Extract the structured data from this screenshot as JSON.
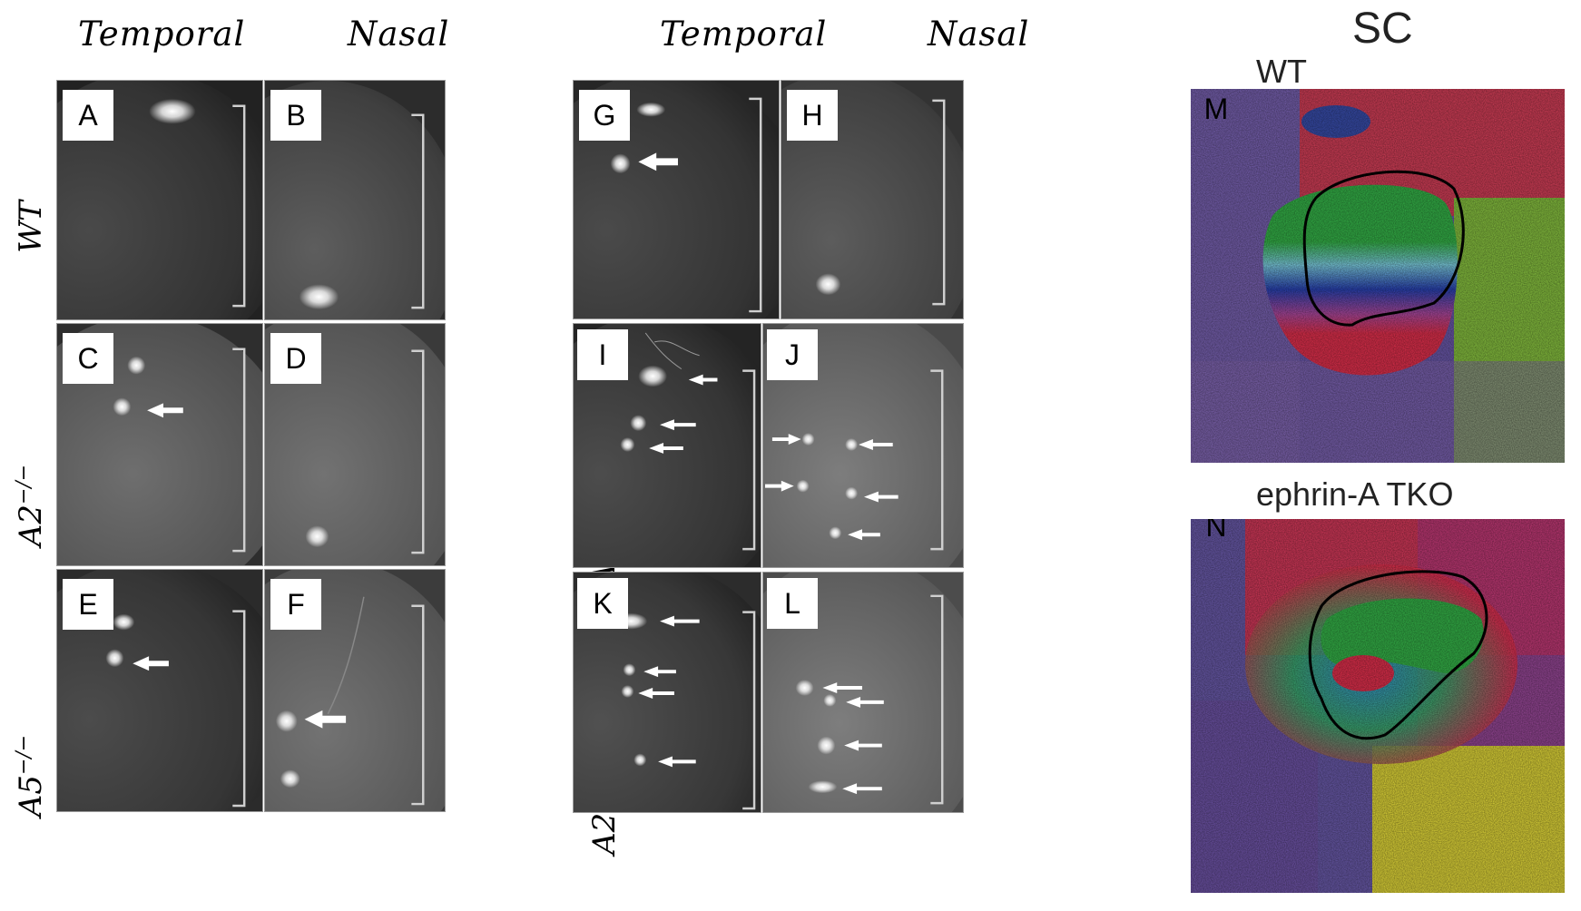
{
  "headers": {
    "left_temporal": "Temporal",
    "left_nasal": "Nasal",
    "mid_temporal": "Temporal",
    "mid_nasal": "Nasal"
  },
  "row_labels": {
    "wt": "WT",
    "a2_base": "A2",
    "a2_sup": "−/−",
    "a5_base": "A5",
    "a5_sup": "−/−",
    "het_a2_base": "A2",
    "het_a2_sup": "+/−",
    "het_a5_base": " A5",
    "het_a5_sup": "+/−",
    "dko1_a2_base": "A2",
    "dko1_a2_sup": "−/−",
    "dko1_a5_base": " A5",
    "dko1_a5_sup": "−/−",
    "dko2_a2_base": "A2",
    "dko2_a2_sup": "−/−",
    "dko2_a5_base": " A5",
    "dko2_a5_sup": "−/−"
  },
  "panels": {
    "A": "A",
    "B": "B",
    "C": "C",
    "D": "D",
    "E": "E",
    "F": "F",
    "G": "G",
    "H": "H",
    "I": "I",
    "J": "J",
    "K": "K",
    "L": "L",
    "M": "M",
    "N": "N"
  },
  "sc": {
    "title": "SC",
    "wt_label": "WT",
    "tko_label": "ephrin-A TKO"
  },
  "colors": {
    "retina_bg": "#1c1c1c",
    "map_red": "#e8314f",
    "map_green": "#36b84a",
    "map_blue": "#2a44b8",
    "map_yellow": "#e6dc3a"
  }
}
